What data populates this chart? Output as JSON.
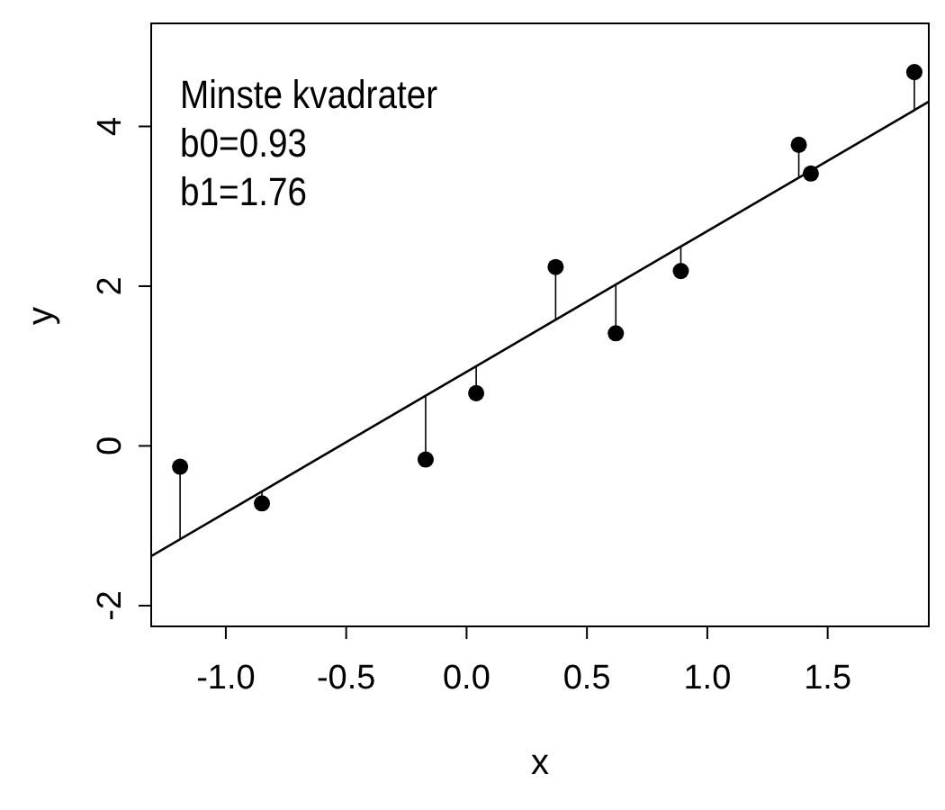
{
  "chart_data": {
    "type": "scatter",
    "xlabel": "x",
    "ylabel": "y",
    "annotations": [
      "Minste kvadrater",
      "b0=0.93",
      "b1=1.76"
    ],
    "xlim": [
      -1.31,
      1.92
    ],
    "ylim": [
      -2.26,
      5.29
    ],
    "xticks": [
      {
        "value": -1,
        "label": "-1.0"
      },
      {
        "value": -0.5,
        "label": "-0.5"
      },
      {
        "value": 0,
        "label": "0.0"
      },
      {
        "value": 0.5,
        "label": "0.5"
      },
      {
        "value": 1,
        "label": "1.0"
      },
      {
        "value": 1.5,
        "label": "1.5"
      }
    ],
    "yticks": [
      -2,
      0,
      2,
      4
    ],
    "grid": false,
    "series": [
      {
        "type": "scatter",
        "color": "#000000",
        "marker": "circle",
        "x": [
          -1.19,
          -0.85,
          -0.17,
          0.04,
          0.37,
          0.62,
          0.89,
          1.38,
          1.43,
          1.86
        ],
        "values": [
          -0.26,
          -0.72,
          -0.17,
          0.66,
          2.24,
          1.41,
          2.19,
          3.77,
          3.41,
          4.68
        ],
        "errors": [
          [
            -1.16,
            -0.26
          ],
          [
            -0.72,
            -0.57
          ],
          [
            -0.17,
            0.63
          ],
          [
            0.66,
            1.0
          ],
          [
            1.58,
            2.24
          ],
          [
            1.41,
            2.02
          ],
          [
            2.19,
            2.5
          ],
          [
            3.36,
            3.77
          ],
          [
            3.41,
            3.45
          ],
          [
            4.2,
            4.68
          ]
        ]
      },
      {
        "type": "line",
        "color": "#000000",
        "marker": "none",
        "x": [
          -1.31,
          1.92
        ],
        "values": [
          -1.38,
          4.31
        ]
      }
    ]
  }
}
